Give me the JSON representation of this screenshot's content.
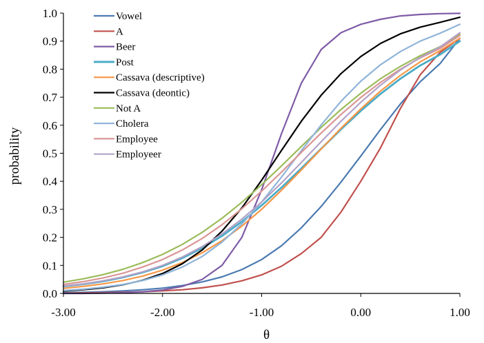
{
  "chart_data": {
    "type": "line",
    "title": "",
    "xlabel": "θ",
    "ylabel": "probability",
    "xlim": [
      -3,
      1
    ],
    "ylim": [
      0,
      1
    ],
    "x_ticks": [
      -3,
      -2,
      -1,
      0,
      1
    ],
    "x_tick_labels": [
      "-3.00",
      "-2.00",
      "-1.00",
      "0.00",
      "1.00"
    ],
    "y_ticks": [
      0,
      0.1,
      0.2,
      0.3,
      0.4,
      0.5,
      0.6,
      0.7,
      0.8,
      0.9,
      1.0
    ],
    "y_tick_labels": [
      "0.0",
      "0.1",
      "0.2",
      "0.3",
      "0.4",
      "0.5",
      "0.6",
      "0.7",
      "0.8",
      "0.9",
      "1.0"
    ],
    "grid": false,
    "legend_position": "top-left",
    "x": [
      -3.0,
      -2.8,
      -2.6,
      -2.4,
      -2.2,
      -2.0,
      -1.8,
      -1.6,
      -1.4,
      -1.2,
      -1.0,
      -0.8,
      -0.6,
      -0.4,
      -0.2,
      0.0,
      0.2,
      0.4,
      0.6,
      0.8,
      1.0
    ],
    "series": [
      {
        "name": "Vowel",
        "color": "#4a7ab0",
        "values": [
          0.003,
          0.004,
          0.006,
          0.009,
          0.013,
          0.019,
          0.028,
          0.041,
          0.059,
          0.085,
          0.121,
          0.17,
          0.234,
          0.31,
          0.397,
          0.49,
          0.585,
          0.676,
          0.755,
          0.82,
          0.91
        ]
      },
      {
        "name": "A",
        "color": "#c0504d",
        "values": [
          0.001,
          0.002,
          0.003,
          0.004,
          0.006,
          0.009,
          0.013,
          0.02,
          0.03,
          0.045,
          0.066,
          0.097,
          0.142,
          0.2,
          0.29,
          0.4,
          0.52,
          0.66,
          0.78,
          0.86,
          0.91
        ]
      },
      {
        "name": "Beer",
        "color": "#7e5ba6",
        "values": [
          0.0,
          0.0,
          0.001,
          0.003,
          0.006,
          0.012,
          0.025,
          0.05,
          0.1,
          0.2,
          0.37,
          0.57,
          0.75,
          0.87,
          0.93,
          0.96,
          0.978,
          0.99,
          0.995,
          0.998,
          0.999
        ]
      },
      {
        "name": "Post",
        "color": "#4bacc6",
        "values": [
          0.025,
          0.033,
          0.043,
          0.057,
          0.075,
          0.097,
          0.126,
          0.162,
          0.205,
          0.256,
          0.314,
          0.378,
          0.446,
          0.516,
          0.585,
          0.651,
          0.712,
          0.766,
          0.813,
          0.852,
          0.9
        ]
      },
      {
        "name": "Cassava (descriptive)",
        "color": "#f79646",
        "values": [
          0.018,
          0.025,
          0.034,
          0.046,
          0.062,
          0.083,
          0.11,
          0.145,
          0.188,
          0.24,
          0.3,
          0.368,
          0.44,
          0.515,
          0.589,
          0.658,
          0.722,
          0.778,
          0.826,
          0.866,
          0.91
        ]
      },
      {
        "name": "Cassava (deontic)",
        "color": "#000000",
        "values": [
          0.008,
          0.013,
          0.02,
          0.031,
          0.047,
          0.071,
          0.106,
          0.155,
          0.222,
          0.305,
          0.404,
          0.51,
          0.614,
          0.707,
          0.784,
          0.845,
          0.892,
          0.926,
          0.95,
          0.967,
          0.985
        ]
      },
      {
        "name": "Not A",
        "color": "#9bbb59",
        "values": [
          0.04,
          0.052,
          0.067,
          0.086,
          0.11,
          0.139,
          0.175,
          0.218,
          0.268,
          0.325,
          0.388,
          0.455,
          0.524,
          0.592,
          0.656,
          0.714,
          0.766,
          0.81,
          0.848,
          0.88,
          0.925
        ]
      },
      {
        "name": "Cholera",
        "color": "#8fb4d9",
        "values": [
          0.01,
          0.015,
          0.022,
          0.032,
          0.046,
          0.066,
          0.094,
          0.132,
          0.183,
          0.248,
          0.326,
          0.415,
          0.509,
          0.601,
          0.685,
          0.757,
          0.816,
          0.863,
          0.9,
          0.928,
          0.96
        ]
      },
      {
        "name": "Employee",
        "color": "#d99694",
        "values": [
          0.032,
          0.042,
          0.055,
          0.072,
          0.094,
          0.121,
          0.155,
          0.196,
          0.245,
          0.302,
          0.365,
          0.433,
          0.503,
          0.572,
          0.638,
          0.699,
          0.753,
          0.8,
          0.84,
          0.874,
          0.92
        ]
      },
      {
        "name": "Employeer",
        "color": "#b2a2c7",
        "values": [
          0.026,
          0.034,
          0.045,
          0.059,
          0.077,
          0.1,
          0.13,
          0.167,
          0.212,
          0.265,
          0.326,
          0.394,
          0.467,
          0.541,
          0.614,
          0.682,
          0.743,
          0.797,
          0.842,
          0.879,
          0.93
        ]
      }
    ]
  }
}
